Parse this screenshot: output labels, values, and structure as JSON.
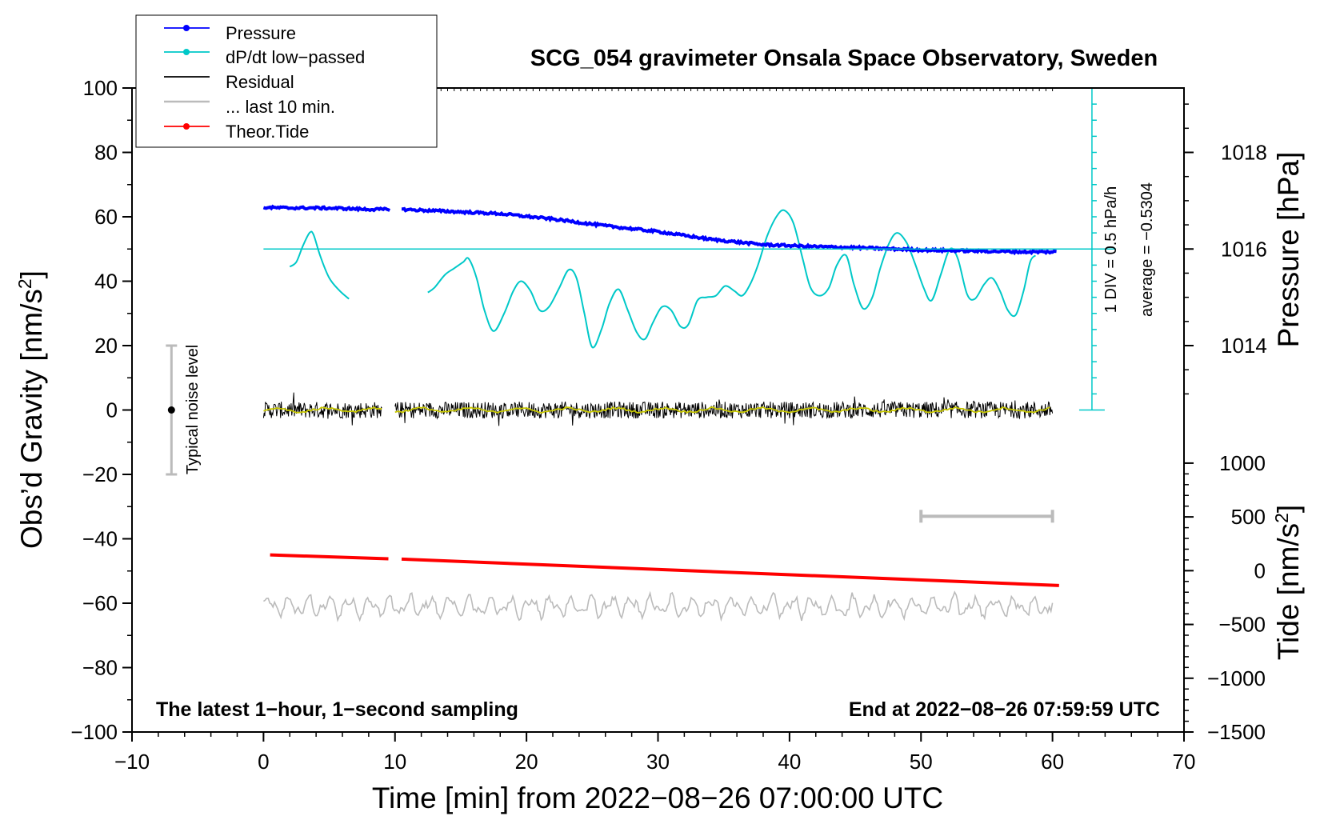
{
  "chart_data": {
    "type": "line",
    "title": "SCG_054 gravimeter Onsala Space Observatory, Sweden",
    "xlabel": "Time [min] from 2022−08−26 07:00:00 UTC",
    "ylabel": "Obs’d Gravity [nm/s",
    "ylabel_sup": "2",
    "ylabel_close": "]",
    "right_label_pressure": "Pressure [hPa]",
    "right_label_tide": "Tide [nm/s",
    "right_label_tide_sup": "2",
    "right_label_tide_close": "]",
    "xlim": [
      -10,
      70
    ],
    "ylim": [
      -100,
      100
    ],
    "x_ticks": [
      -10,
      0,
      10,
      20,
      30,
      40,
      50,
      60,
      70
    ],
    "x_tick_labels": [
      "−10",
      "0",
      "10",
      "20",
      "30",
      "40",
      "50",
      "60",
      "70"
    ],
    "y_ticks": [
      -100,
      -80,
      -60,
      -40,
      -20,
      0,
      20,
      40,
      60,
      80,
      100
    ],
    "y_tick_labels": [
      "−100",
      "−80",
      "−60",
      "−40",
      "−20",
      "0",
      "20",
      "40",
      "60",
      "80",
      "100"
    ],
    "pressure_ticks": [
      1014,
      1016,
      1018
    ],
    "pressure_tick_labels": [
      "1014",
      "1016",
      "1018"
    ],
    "tide_ticks": [
      -1500,
      -1000,
      -500,
      0,
      500,
      1000
    ],
    "tide_tick_labels": [
      "−1500",
      "−1000",
      "−500",
      "0",
      "500",
      "1000"
    ],
    "pressure_mapping": {
      "hpa_a": 1014,
      "gravity_a": 20,
      "hpa_b": 1016,
      "gravity_b": 50
    },
    "tide_mapping": {
      "tide_a": -1500,
      "gravity_a": -100,
      "tide_b": 1000,
      "gravity_b": -16.5
    },
    "legend": [
      {
        "name": "Pressure",
        "color": "#0000ff",
        "marker": true
      },
      {
        "name": "dP/dt low−passed",
        "color": "#00c8c8",
        "marker": true
      },
      {
        "name": "Residual",
        "color": "#000000",
        "marker": false
      },
      {
        "name": "... last 10 min.",
        "color": "#bbbbbb",
        "marker": false
      },
      {
        "name": "Theor.Tide",
        "color": "#ff0000",
        "marker": true
      }
    ],
    "legend_position": "top-left",
    "series": [
      {
        "name": "Pressure",
        "unit": "hPa",
        "segments": [
          {
            "x": [
              0,
              2,
              4,
              6,
              8,
              9.6
            ],
            "y": [
              1016.86,
              1016.85,
              1016.85,
              1016.84,
              1016.82,
              1016.82
            ]
          },
          {
            "x": [
              10.5,
              14,
              18,
              22,
              26,
              30,
              34,
              38,
              42,
              46,
              50,
              54,
              58,
              60.4
            ],
            "y": [
              1016.82,
              1016.78,
              1016.73,
              1016.62,
              1016.48,
              1016.36,
              1016.2,
              1016.09,
              1016.05,
              1016.02,
              1015.98,
              1015.96,
              1015.94,
              1015.94
            ]
          }
        ]
      },
      {
        "name": "dP/dt low−passed",
        "unit": "nm/s2 axis",
        "segments": [
          {
            "x": [
              2,
              2.5,
              3,
              3.5,
              3.8,
              4.3,
              5,
              5.8,
              6.5
            ],
            "y": [
              44.5,
              46,
              51,
              55,
              54.5,
              48,
              41,
              37,
              34.5
            ]
          },
          {
            "x": [
              12.5,
              13,
              13.8,
              14.5,
              15.2,
              15.6,
              16.2,
              16.8,
              17.5,
              18.3,
              19,
              19.6,
              20.3,
              21,
              21.7,
              22.5,
              23.2,
              23.8,
              24.4,
              25,
              25.7,
              26.3,
              27,
              27.7,
              28.4,
              29,
              29.6,
              30.3,
              31,
              31.7,
              32.3,
              33,
              33.7,
              34.4,
              35.1,
              35.8,
              36.4,
              37,
              37.6,
              38.3,
              39,
              39.6,
              40.3,
              41,
              41.6,
              42.3,
              43,
              43.6,
              44.3,
              44.9,
              45.6,
              46.3,
              46.9,
              47.6,
              48.2,
              48.9,
              49.5,
              50.2,
              50.8,
              51.5,
              52.2,
              52.8,
              53.5,
              54.1,
              54.8,
              55.4,
              56,
              56.6,
              57.2,
              57.8,
              58.3,
              58.7
            ],
            "y": [
              36.5,
              38,
              42,
              44,
              46,
              47,
              41,
              31,
              24.5,
              30,
              37,
              40,
              37,
              31,
              32,
              38,
              43.5,
              41,
              30,
              19.5,
              25,
              33,
              37.5,
              31,
              24,
              22,
              27,
              32,
              31,
              26,
              26.5,
              34,
              35,
              35.5,
              38.5,
              37,
              35.5,
              39,
              45,
              54,
              60,
              62,
              58,
              47,
              38,
              35.5,
              38,
              45,
              48,
              39,
              31.5,
              35,
              44,
              52,
              55,
              52,
              46,
              38,
              34,
              42,
              50,
              47,
              36,
              34.5,
              39,
              41,
              37,
              31,
              29.5,
              37,
              46,
              48
            ]
          }
        ]
      },
      {
        "name": "Residual",
        "unit": "nm/s2",
        "segments": [
          {
            "x": [
              0,
              9
            ],
            "y": [
              0,
              0
            ]
          },
          {
            "x": [
              10,
              60
            ],
            "y": [
              0,
              0
            ]
          }
        ],
        "noise_amplitude": 5
      },
      {
        "name": "... last 10 min.",
        "unit": "nm/s2",
        "segments": [
          {
            "x": [
              0,
              60
            ],
            "y": [
              -61,
              -61
            ]
          }
        ],
        "noise_amplitude": 4
      },
      {
        "name": "Theor.Tide",
        "unit": "nm/s2",
        "segments": [
          {
            "x": [
              0.5,
              9.5
            ],
            "y": [
              -45,
              -46.2
            ]
          },
          {
            "x": [
              10.5,
              60.5
            ],
            "y": [
              -46.3,
              -54.5
            ]
          }
        ]
      }
    ],
    "pressure_reference_line": {
      "y": 50,
      "x_start": 0,
      "x_end": 63
    },
    "scale_bar": {
      "x": 63,
      "y_min": 0,
      "y_max": 100,
      "tick_step": 5,
      "labels": [
        "1 DIV = 0.5 hPa/h",
        "average = −0.5304"
      ]
    },
    "noise_bar": {
      "x": -7,
      "y_min": -20,
      "y_max": 20,
      "center": 0,
      "label": "Typical noise level"
    },
    "last10_bar": {
      "x_start": 50,
      "x_end": 60,
      "y": -33
    },
    "annotations": {
      "bottom_left": "The latest 1−hour, 1−second sampling",
      "bottom_right": "End at 2022−08−26 07:59:59 UTC"
    },
    "colors": {
      "pressure": "#0000ff",
      "dpdt": "#00c8c8",
      "residual": "#000000",
      "residual_smooth": "#c8c800",
      "last10": "#bbbbbb",
      "tide": "#ff0000",
      "noisebar": "#bbbbbb"
    }
  }
}
